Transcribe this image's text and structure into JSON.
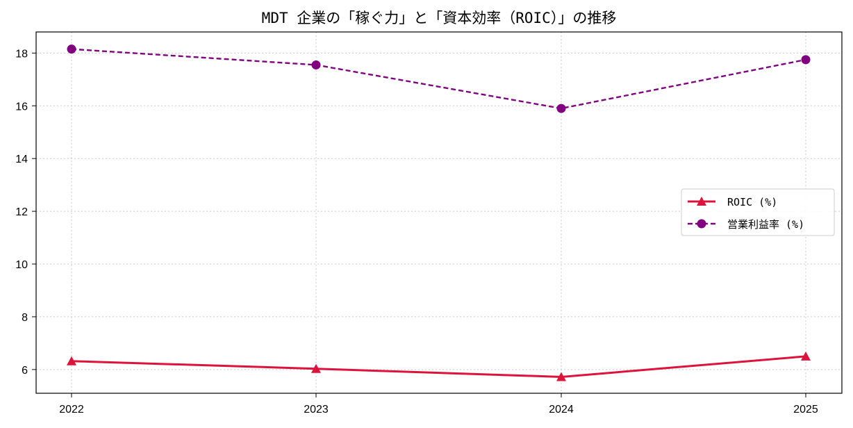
{
  "chart_data": {
    "type": "line",
    "title": "MDT 企業の「稼ぐ力」と「資本効率（ROIC）」の推移",
    "xlabel": "",
    "ylabel": "",
    "x": [
      "2022",
      "2023",
      "2024",
      "2025"
    ],
    "yticks": [
      "6",
      "8",
      "10",
      "12",
      "14",
      "16",
      "18"
    ],
    "ylim": [
      5.1,
      18.8
    ],
    "grid": true,
    "legend_position": "center-right",
    "series": [
      {
        "name": "ROIC (%)",
        "values": [
          6.32,
          6.03,
          5.72,
          6.5
        ],
        "color": "#dc143c",
        "line_style": "solid",
        "marker": "triangle"
      },
      {
        "name": "営業利益率 (%)",
        "values": [
          18.15,
          17.55,
          15.9,
          17.75
        ],
        "color": "#800080",
        "line_style": "dashed",
        "marker": "circle"
      }
    ]
  }
}
